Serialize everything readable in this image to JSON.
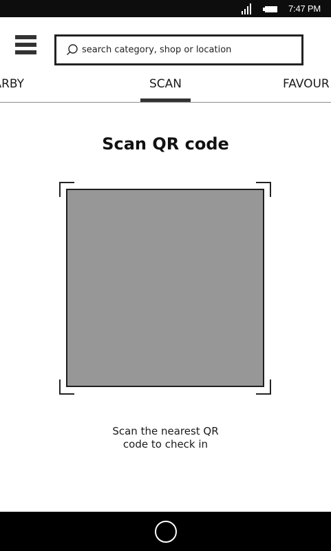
{
  "status_bar": {
    "time": "7:47 PM",
    "icons": [
      "signal-icon",
      "battery-icon"
    ]
  },
  "header": {
    "menu_icon": "hamburger-menu-icon",
    "search": {
      "placeholder": "search category, shop or location",
      "value": "",
      "icon": "search-icon"
    }
  },
  "tabs": [
    {
      "label": "ARBY",
      "active": false
    },
    {
      "label": "SCAN",
      "active": true
    },
    {
      "label": "FAVOUR",
      "active": false
    }
  ],
  "main": {
    "title": "Scan QR code",
    "instruction_line1": "Scan the nearest QR",
    "instruction_line2": "code to check in"
  },
  "nav_bar": {
    "home_icon": "home-circle-icon"
  },
  "colors": {
    "status_bar_bg": "#0d0d0d",
    "nav_bar_bg": "#000000",
    "viewport_fill": "#979797",
    "text": "#1a1a1a"
  }
}
